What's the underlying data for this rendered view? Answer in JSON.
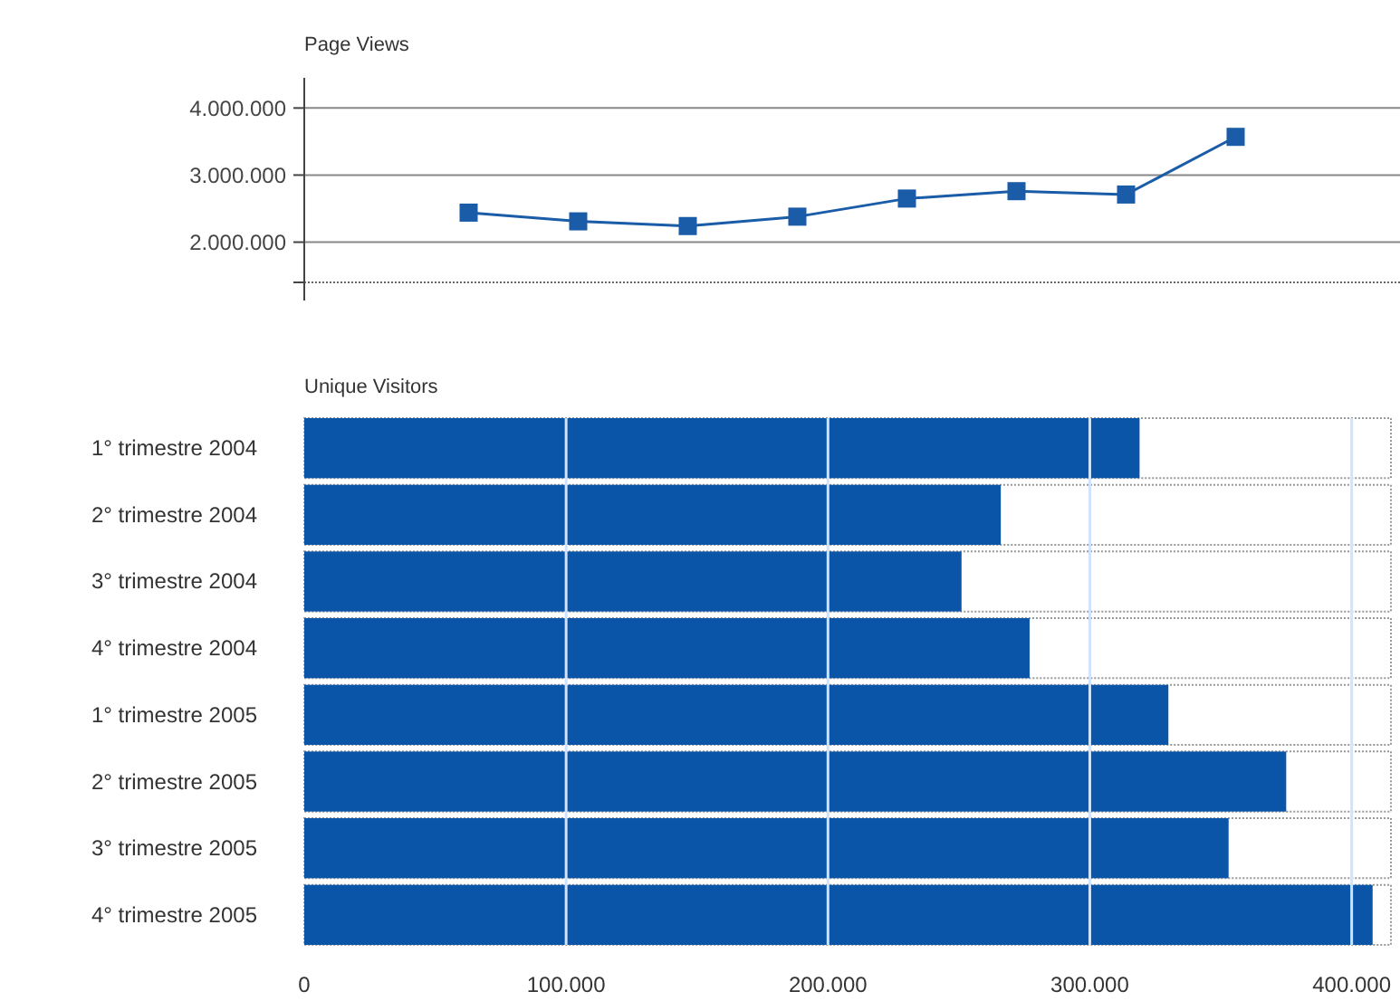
{
  "chart_data": [
    {
      "type": "line",
      "title": "Page Views",
      "categories": [
        null,
        null,
        null,
        null,
        null,
        null,
        null,
        null
      ],
      "series": [
        {
          "color": "#1a5ca8",
          "values": [
            2440000,
            2310000,
            2240000,
            2380000,
            2650000,
            2760000,
            2710000,
            3570000
          ]
        }
      ],
      "ylim": [
        1400000,
        4450000
      ],
      "yticks": [
        {
          "value": 2000000,
          "label": "2.000.000"
        },
        {
          "value": 3000000,
          "label": "3.000.000"
        },
        {
          "value": 4000000,
          "label": "4.000.000"
        }
      ],
      "grid": "y",
      "tick_labels": "y",
      "marker": "square",
      "line_style": "solid"
    },
    {
      "type": "bar",
      "orientation": "horizontal",
      "title": "Unique Visitors",
      "categories": [
        "1° trimestre 2004",
        "2° trimestre 2004",
        "3° trimestre 2004",
        "4° trimestre 2004",
        "1° trimestre 2005",
        "2° trimestre 2005",
        "3° trimestre 2005",
        "4° trimestre 2005"
      ],
      "series": [
        {
          "color": "#0a55a8",
          "values": [
            319000,
            266000,
            251000,
            277000,
            330000,
            375000,
            353000,
            408000
          ]
        }
      ],
      "xlim": [
        0,
        415000
      ],
      "xticks": [
        0,
        {
          "value": 100000,
          "label": "100.000"
        },
        {
          "value": 200000,
          "label": "200.000"
        },
        {
          "value": 300000,
          "label": "300.000"
        },
        {
          "value": 400000,
          "label": "400.000"
        }
      ],
      "grid": "x"
    }
  ]
}
